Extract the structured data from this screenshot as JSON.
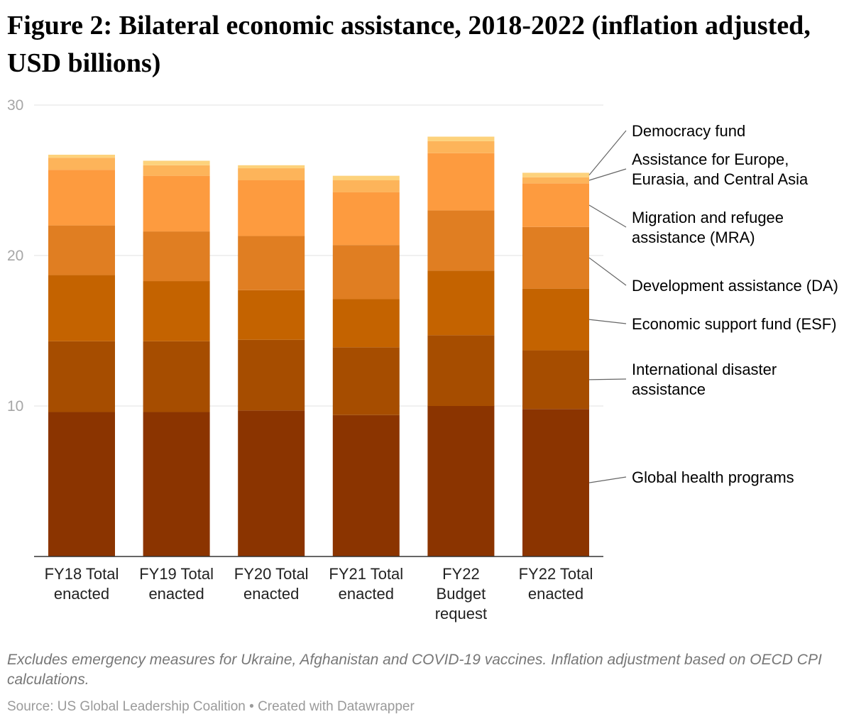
{
  "chart_data": {
    "type": "bar",
    "stacked": true,
    "title": "Figure 2: Bilateral economic assistance, 2018-2022 (inflation adjusted, USD billions)",
    "categories": [
      [
        "FY18 Total",
        "enacted"
      ],
      [
        "FY19 Total",
        "enacted"
      ],
      [
        "FY20 Total",
        "enacted"
      ],
      [
        "FY21 Total",
        "enacted"
      ],
      [
        "FY22",
        "Budget",
        "request"
      ],
      [
        "FY22 Total",
        "enacted"
      ]
    ],
    "yticks": [
      10,
      20,
      30
    ],
    "ylim": [
      0,
      30
    ],
    "grid": true,
    "legend_position": "right",
    "series": [
      {
        "name": [
          "Global health programs"
        ],
        "color": "#8b3400",
        "values": [
          9.6,
          9.6,
          9.7,
          9.4,
          10.0,
          9.8
        ]
      },
      {
        "name": [
          "International disaster",
          "assistance"
        ],
        "color": "#a64d00",
        "values": [
          4.7,
          4.7,
          4.7,
          4.5,
          4.7,
          3.9
        ]
      },
      {
        "name": [
          "Economic support fund (ESF)"
        ],
        "color": "#c46300",
        "values": [
          4.4,
          4.0,
          3.3,
          3.2,
          4.3,
          4.1
        ]
      },
      {
        "name": [
          "Development assistance (DA)"
        ],
        "color": "#e07e22",
        "values": [
          3.3,
          3.3,
          3.6,
          3.6,
          4.0,
          4.1
        ]
      },
      {
        "name": [
          "Migration and refugee",
          "assistance (MRA)"
        ],
        "color": "#fd9b3f",
        "values": [
          3.7,
          3.7,
          3.7,
          3.5,
          3.8,
          2.9
        ]
      },
      {
        "name": [
          "Assistance for Europe,",
          "Eurasia, and Central Asia"
        ],
        "color": "#fdb45a",
        "values": [
          0.8,
          0.7,
          0.8,
          0.8,
          0.8,
          0.4
        ]
      },
      {
        "name": [
          "Democracy fund"
        ],
        "color": "#fdd27c",
        "values": [
          0.2,
          0.3,
          0.2,
          0.3,
          0.3,
          0.3
        ]
      }
    ]
  },
  "notes": "Excludes emergency measures for Ukraine, Afghanistan and COVID-19 vaccines. Inflation adjustment based on OECD CPI calculations.",
  "source": "Source: US Global Leadership Coalition • Created with Datawrapper"
}
